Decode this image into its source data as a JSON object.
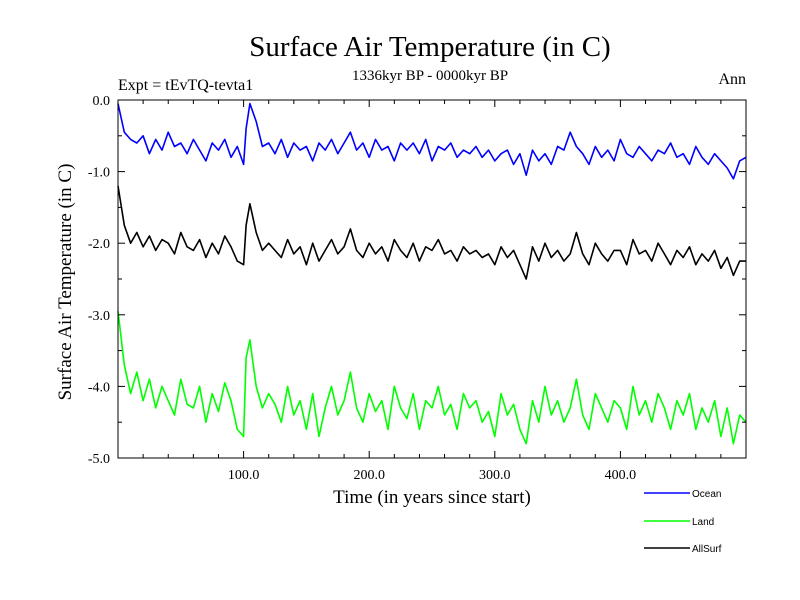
{
  "chart_data": {
    "type": "line",
    "title": "Surface Air Temperature (in C)",
    "subtitle": "1336kyr BP - 0000kyr BP",
    "left_label": "Expt = tEvTQ-tevta1",
    "right_label": "Ann",
    "xlabel": "Time (in years since start)",
    "ylabel": "Surface Air Temperature (in C)",
    "xlim": [
      0,
      500
    ],
    "ylim": [
      -5.0,
      0.0
    ],
    "x_ticks": [
      {
        "value": 100,
        "label": "100.0"
      },
      {
        "value": 200,
        "label": "200.0"
      },
      {
        "value": 300,
        "label": "300.0"
      },
      {
        "value": 400,
        "label": "400.0"
      }
    ],
    "y_ticks": [
      {
        "value": 0.0,
        "label": "0.0"
      },
      {
        "value": -1.0,
        "label": "-1.0"
      },
      {
        "value": -2.0,
        "label": "-2.0"
      },
      {
        "value": -3.0,
        "label": "-3.0"
      },
      {
        "value": -4.0,
        "label": "-4.0"
      },
      {
        "value": -5.0,
        "label": "-5.0"
      }
    ],
    "series": [
      {
        "name": "Ocean",
        "color": "#0000ff",
        "x": [
          0,
          5,
          10,
          15,
          20,
          25,
          30,
          35,
          40,
          45,
          50,
          55,
          60,
          65,
          70,
          75,
          80,
          85,
          90,
          95,
          100,
          102,
          105,
          110,
          115,
          120,
          125,
          130,
          135,
          140,
          145,
          150,
          155,
          160,
          165,
          170,
          175,
          180,
          185,
          190,
          195,
          200,
          205,
          210,
          215,
          220,
          225,
          230,
          235,
          240,
          245,
          250,
          255,
          260,
          265,
          270,
          275,
          280,
          285,
          290,
          295,
          300,
          305,
          310,
          315,
          320,
          325,
          330,
          335,
          340,
          345,
          350,
          355,
          360,
          365,
          370,
          375,
          380,
          385,
          390,
          395,
          400,
          405,
          410,
          415,
          420,
          425,
          430,
          435,
          440,
          445,
          450,
          455,
          460,
          465,
          470,
          475,
          480,
          485,
          490,
          495,
          500
        ],
        "values": [
          -0.05,
          -0.45,
          -0.55,
          -0.6,
          -0.5,
          -0.75,
          -0.55,
          -0.7,
          -0.45,
          -0.65,
          -0.6,
          -0.75,
          -0.55,
          -0.7,
          -0.85,
          -0.6,
          -0.7,
          -0.55,
          -0.8,
          -0.65,
          -0.9,
          -0.4,
          -0.05,
          -0.3,
          -0.65,
          -0.6,
          -0.75,
          -0.55,
          -0.8,
          -0.6,
          -0.7,
          -0.65,
          -0.85,
          -0.6,
          -0.7,
          -0.55,
          -0.75,
          -0.6,
          -0.45,
          -0.7,
          -0.6,
          -0.8,
          -0.55,
          -0.7,
          -0.65,
          -0.85,
          -0.6,
          -0.7,
          -0.6,
          -0.75,
          -0.55,
          -0.85,
          -0.65,
          -0.7,
          -0.6,
          -0.8,
          -0.7,
          -0.75,
          -0.65,
          -0.8,
          -0.7,
          -0.85,
          -0.75,
          -0.7,
          -0.9,
          -0.75,
          -1.05,
          -0.7,
          -0.85,
          -0.75,
          -0.9,
          -0.65,
          -0.7,
          -0.45,
          -0.65,
          -0.75,
          -0.9,
          -0.65,
          -0.8,
          -0.7,
          -0.85,
          -0.55,
          -0.75,
          -0.8,
          -0.65,
          -0.75,
          -0.85,
          -0.7,
          -0.75,
          -0.6,
          -0.8,
          -0.75,
          -0.9,
          -0.65,
          -0.8,
          -0.9,
          -0.75,
          -0.85,
          -0.95,
          -1.1,
          -0.85,
          -0.8
        ]
      },
      {
        "name": "Land",
        "color": "#00ff00",
        "x": [
          0,
          5,
          10,
          15,
          20,
          25,
          30,
          35,
          40,
          45,
          50,
          55,
          60,
          65,
          70,
          75,
          80,
          85,
          90,
          95,
          100,
          102,
          105,
          110,
          115,
          120,
          125,
          130,
          135,
          140,
          145,
          150,
          155,
          160,
          165,
          170,
          175,
          180,
          185,
          190,
          195,
          200,
          205,
          210,
          215,
          220,
          225,
          230,
          235,
          240,
          245,
          250,
          255,
          260,
          265,
          270,
          275,
          280,
          285,
          290,
          295,
          300,
          305,
          310,
          315,
          320,
          325,
          330,
          335,
          340,
          345,
          350,
          355,
          360,
          365,
          370,
          375,
          380,
          385,
          390,
          395,
          400,
          405,
          410,
          415,
          420,
          425,
          430,
          435,
          440,
          445,
          450,
          455,
          460,
          465,
          470,
          475,
          480,
          485,
          490,
          495,
          500
        ],
        "values": [
          -2.95,
          -3.7,
          -4.1,
          -3.8,
          -4.2,
          -3.9,
          -4.3,
          -4.0,
          -4.2,
          -4.4,
          -3.9,
          -4.25,
          -4.3,
          -4.0,
          -4.5,
          -4.1,
          -4.35,
          -3.95,
          -4.2,
          -4.6,
          -4.7,
          -3.6,
          -3.35,
          -4.0,
          -4.3,
          -4.1,
          -4.25,
          -4.5,
          -4.0,
          -4.4,
          -4.2,
          -4.6,
          -4.1,
          -4.7,
          -4.3,
          -4.0,
          -4.4,
          -4.2,
          -3.8,
          -4.3,
          -4.5,
          -4.1,
          -4.35,
          -4.2,
          -4.6,
          -4.0,
          -4.3,
          -4.45,
          -4.1,
          -4.6,
          -4.2,
          -4.3,
          -4.0,
          -4.4,
          -4.25,
          -4.6,
          -4.1,
          -4.3,
          -4.2,
          -4.5,
          -4.35,
          -4.7,
          -4.1,
          -4.4,
          -4.25,
          -4.6,
          -4.8,
          -4.2,
          -4.5,
          -4.0,
          -4.4,
          -4.2,
          -4.5,
          -4.3,
          -3.9,
          -4.4,
          -4.6,
          -4.1,
          -4.3,
          -4.5,
          -4.2,
          -4.3,
          -4.6,
          -4.0,
          -4.4,
          -4.2,
          -4.5,
          -4.1,
          -4.3,
          -4.6,
          -4.2,
          -4.4,
          -4.1,
          -4.6,
          -4.3,
          -4.5,
          -4.2,
          -4.7,
          -4.3,
          -4.8,
          -4.4,
          -4.5
        ]
      },
      {
        "name": "AllSurf",
        "color": "#000000",
        "x": [
          0,
          5,
          10,
          15,
          20,
          25,
          30,
          35,
          40,
          45,
          50,
          55,
          60,
          65,
          70,
          75,
          80,
          85,
          90,
          95,
          100,
          102,
          105,
          110,
          115,
          120,
          125,
          130,
          135,
          140,
          145,
          150,
          155,
          160,
          165,
          170,
          175,
          180,
          185,
          190,
          195,
          200,
          205,
          210,
          215,
          220,
          225,
          230,
          235,
          240,
          245,
          250,
          255,
          260,
          265,
          270,
          275,
          280,
          285,
          290,
          295,
          300,
          305,
          310,
          315,
          320,
          325,
          330,
          335,
          340,
          345,
          350,
          355,
          360,
          365,
          370,
          375,
          380,
          385,
          390,
          395,
          400,
          405,
          410,
          415,
          420,
          425,
          430,
          435,
          440,
          445,
          450,
          455,
          460,
          465,
          470,
          475,
          480,
          485,
          490,
          495,
          500
        ],
        "values": [
          -1.2,
          -1.75,
          -2.0,
          -1.85,
          -2.05,
          -1.9,
          -2.1,
          -1.95,
          -2.0,
          -2.15,
          -1.85,
          -2.05,
          -2.1,
          -1.95,
          -2.2,
          -2.0,
          -2.15,
          -1.9,
          -2.05,
          -2.25,
          -2.3,
          -1.75,
          -1.45,
          -1.85,
          -2.1,
          -2.0,
          -2.1,
          -2.2,
          -1.95,
          -2.15,
          -2.05,
          -2.3,
          -2.0,
          -2.25,
          -2.1,
          -1.95,
          -2.15,
          -2.05,
          -1.8,
          -2.1,
          -2.2,
          -2.0,
          -2.15,
          -2.05,
          -2.25,
          -1.95,
          -2.1,
          -2.2,
          -2.0,
          -2.25,
          -2.05,
          -2.1,
          -1.95,
          -2.15,
          -2.1,
          -2.25,
          -2.05,
          -2.15,
          -2.1,
          -2.2,
          -2.15,
          -2.3,
          -2.05,
          -2.2,
          -2.1,
          -2.3,
          -2.5,
          -2.05,
          -2.25,
          -2.0,
          -2.2,
          -2.1,
          -2.25,
          -2.15,
          -1.85,
          -2.15,
          -2.3,
          -2.0,
          -2.15,
          -2.25,
          -2.1,
          -2.1,
          -2.3,
          -1.95,
          -2.15,
          -2.1,
          -2.25,
          -2.0,
          -2.15,
          -2.3,
          -2.1,
          -2.2,
          -2.05,
          -2.3,
          -2.15,
          -2.25,
          -2.1,
          -2.35,
          -2.2,
          -2.45,
          -2.25,
          -2.25
        ]
      }
    ],
    "legend": {
      "position": "bottom-right",
      "entries": [
        "Ocean",
        "Land",
        "AllSurf"
      ]
    }
  }
}
